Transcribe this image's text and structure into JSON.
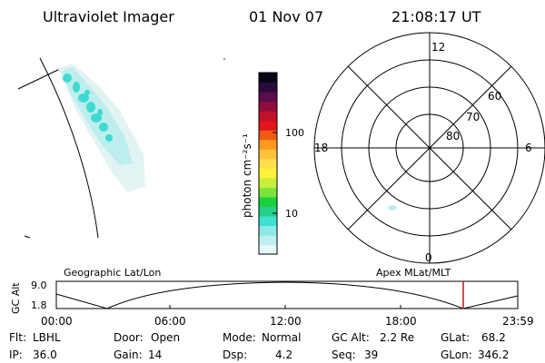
{
  "header": {
    "instrument": "Ultraviolet Imager",
    "date": "01 Nov 07",
    "time": "21:08:17 UT"
  },
  "colorbar": {
    "unit_label": "photon cm⁻²s⁻¹",
    "ticks": [
      "100",
      "10"
    ],
    "gradient": [
      "#e6f7f7",
      "#bff0ef",
      "#8ee8e4",
      "#3fe0d2",
      "#25d08a",
      "#1bd23c",
      "#7ee33a",
      "#c9ef3b",
      "#fbf23a",
      "#ffe04a",
      "#ffc23a",
      "#ff9a1f",
      "#f05a14",
      "#e4141c",
      "#c0102a",
      "#8e0b3a",
      "#5a0c4c",
      "#2a0b3c",
      "#0a0618"
    ]
  },
  "polar_plot": {
    "mlt_labels": [
      "12",
      "18",
      "6",
      "0"
    ],
    "lat_labels": [
      "60",
      "70",
      "80"
    ]
  },
  "altitude_strip": {
    "left_label": "Geographic Lat/Lon",
    "right_label": "Apex MLat/MLT",
    "axis_title": "GC Alt",
    "y_ticks": [
      "9.0",
      "1.8"
    ],
    "x_ticks": [
      "00:00",
      "06:00",
      "12:00",
      "18:00",
      "23:59"
    ],
    "marker_color": "#c0141a"
  },
  "status": {
    "row1": [
      {
        "label": "Flt:",
        "value": "LBHL"
      },
      {
        "label": "Door:",
        "value": "Open"
      },
      {
        "label": "Mode:",
        "value": "Normal"
      },
      {
        "label": "GC Alt:",
        "value": "2.2 Re"
      },
      {
        "label": "GLat:",
        "value": "68.2"
      }
    ],
    "row2": [
      {
        "label": "IP:",
        "value": "36.0"
      },
      {
        "label": "Gain:",
        "value": "14"
      },
      {
        "label": "Dsp:",
        "value": "4.2"
      },
      {
        "label": "Seq:",
        "value": "39"
      },
      {
        "label": "GLon:",
        "value": "346.2"
      }
    ]
  },
  "colors": {
    "aurora": "#3fd9d4",
    "aurora_light": "#bdeeed",
    "aurora_faint": "#e1f4f3"
  }
}
